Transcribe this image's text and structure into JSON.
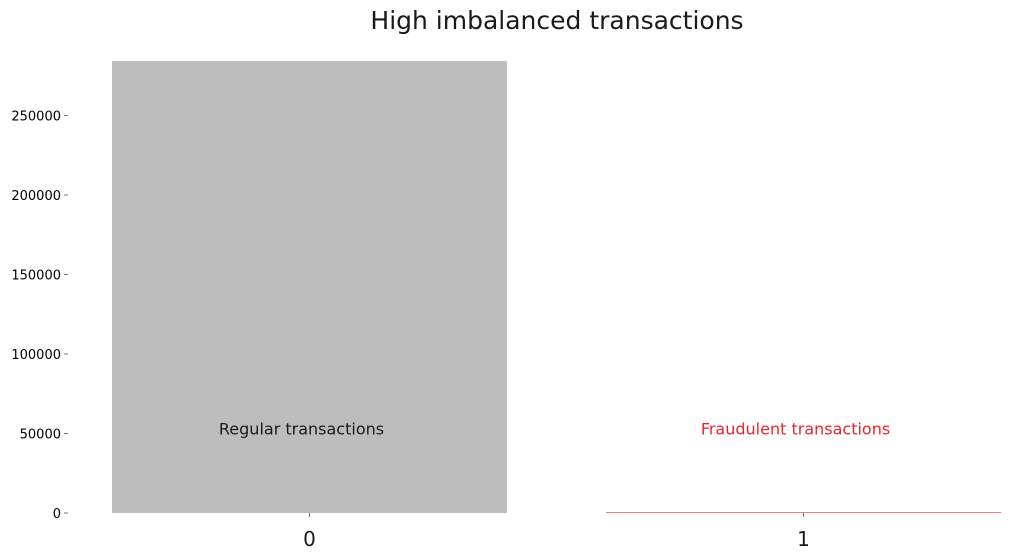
{
  "chart_data": {
    "type": "bar",
    "title": "High imbalanced transactions",
    "xlabel": "",
    "ylabel": "",
    "categories": [
      "0",
      "1"
    ],
    "values": [
      284315,
      492
    ],
    "colors": [
      "#bdbdbd",
      "#e8807a"
    ],
    "ylim": [
      0,
      284315
    ],
    "yticks": [
      0,
      50000,
      100000,
      150000,
      200000,
      250000
    ],
    "ytick_labels": [
      "0",
      "50000",
      "100000",
      "150000",
      "200000",
      "250000"
    ],
    "grid": false,
    "annotations": [
      {
        "text": "Regular transactions",
        "category": "0",
        "y": 53000,
        "color": "#1a1a1a"
      },
      {
        "text": "Fraudulent transactions",
        "category": "1",
        "y": 53000,
        "color": "#e8262e"
      }
    ]
  }
}
